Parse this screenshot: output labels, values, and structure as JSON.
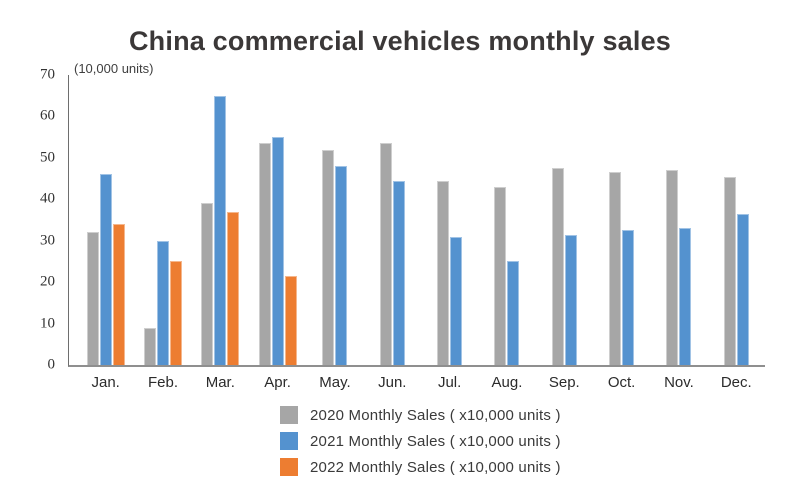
{
  "chart": {
    "title": "China commercial vehicles monthly sales",
    "axis_note": "(10,000 units)",
    "y_ticks": [
      70,
      60,
      50,
      40,
      30,
      20,
      10,
      0
    ]
  },
  "chart_data": {
    "type": "bar",
    "title": "China commercial vehicles monthly sales",
    "ylabel": "(10,000 units)",
    "xlabel": "",
    "ylim": [
      0,
      70
    ],
    "grid": false,
    "legend_position": "bottom",
    "categories": [
      "Jan.",
      "Feb.",
      "Mar.",
      "Apr.",
      "May.",
      "Jun.",
      "Jul.",
      "Aug.",
      "Sep.",
      "Oct.",
      "Nov.",
      "Dec."
    ],
    "series": [
      {
        "name": "2020 Monthly Sales ( x10,000 units )",
        "color": "#A6A6A6",
        "values": [
          32,
          9,
          39,
          53.5,
          52,
          53.5,
          44.5,
          43,
          47.5,
          46.5,
          47,
          45.5
        ]
      },
      {
        "name": "2021 Monthly Sales ( x10,000 units )",
        "color": "#5492CF",
        "values": [
          46,
          30,
          65,
          55,
          48,
          44.5,
          31,
          25,
          31.5,
          32.5,
          33,
          36.5
        ]
      },
      {
        "name": "2022 Monthly Sales ( x10,000 units )",
        "color": "#ED7D31",
        "values": [
          34,
          25,
          37,
          21.5,
          null,
          null,
          null,
          null,
          null,
          null,
          null,
          null
        ]
      }
    ],
    "axis_colors": {
      "y_axis_line": "#6e6e6e",
      "x_axis_line": "#8f8f8f"
    }
  }
}
